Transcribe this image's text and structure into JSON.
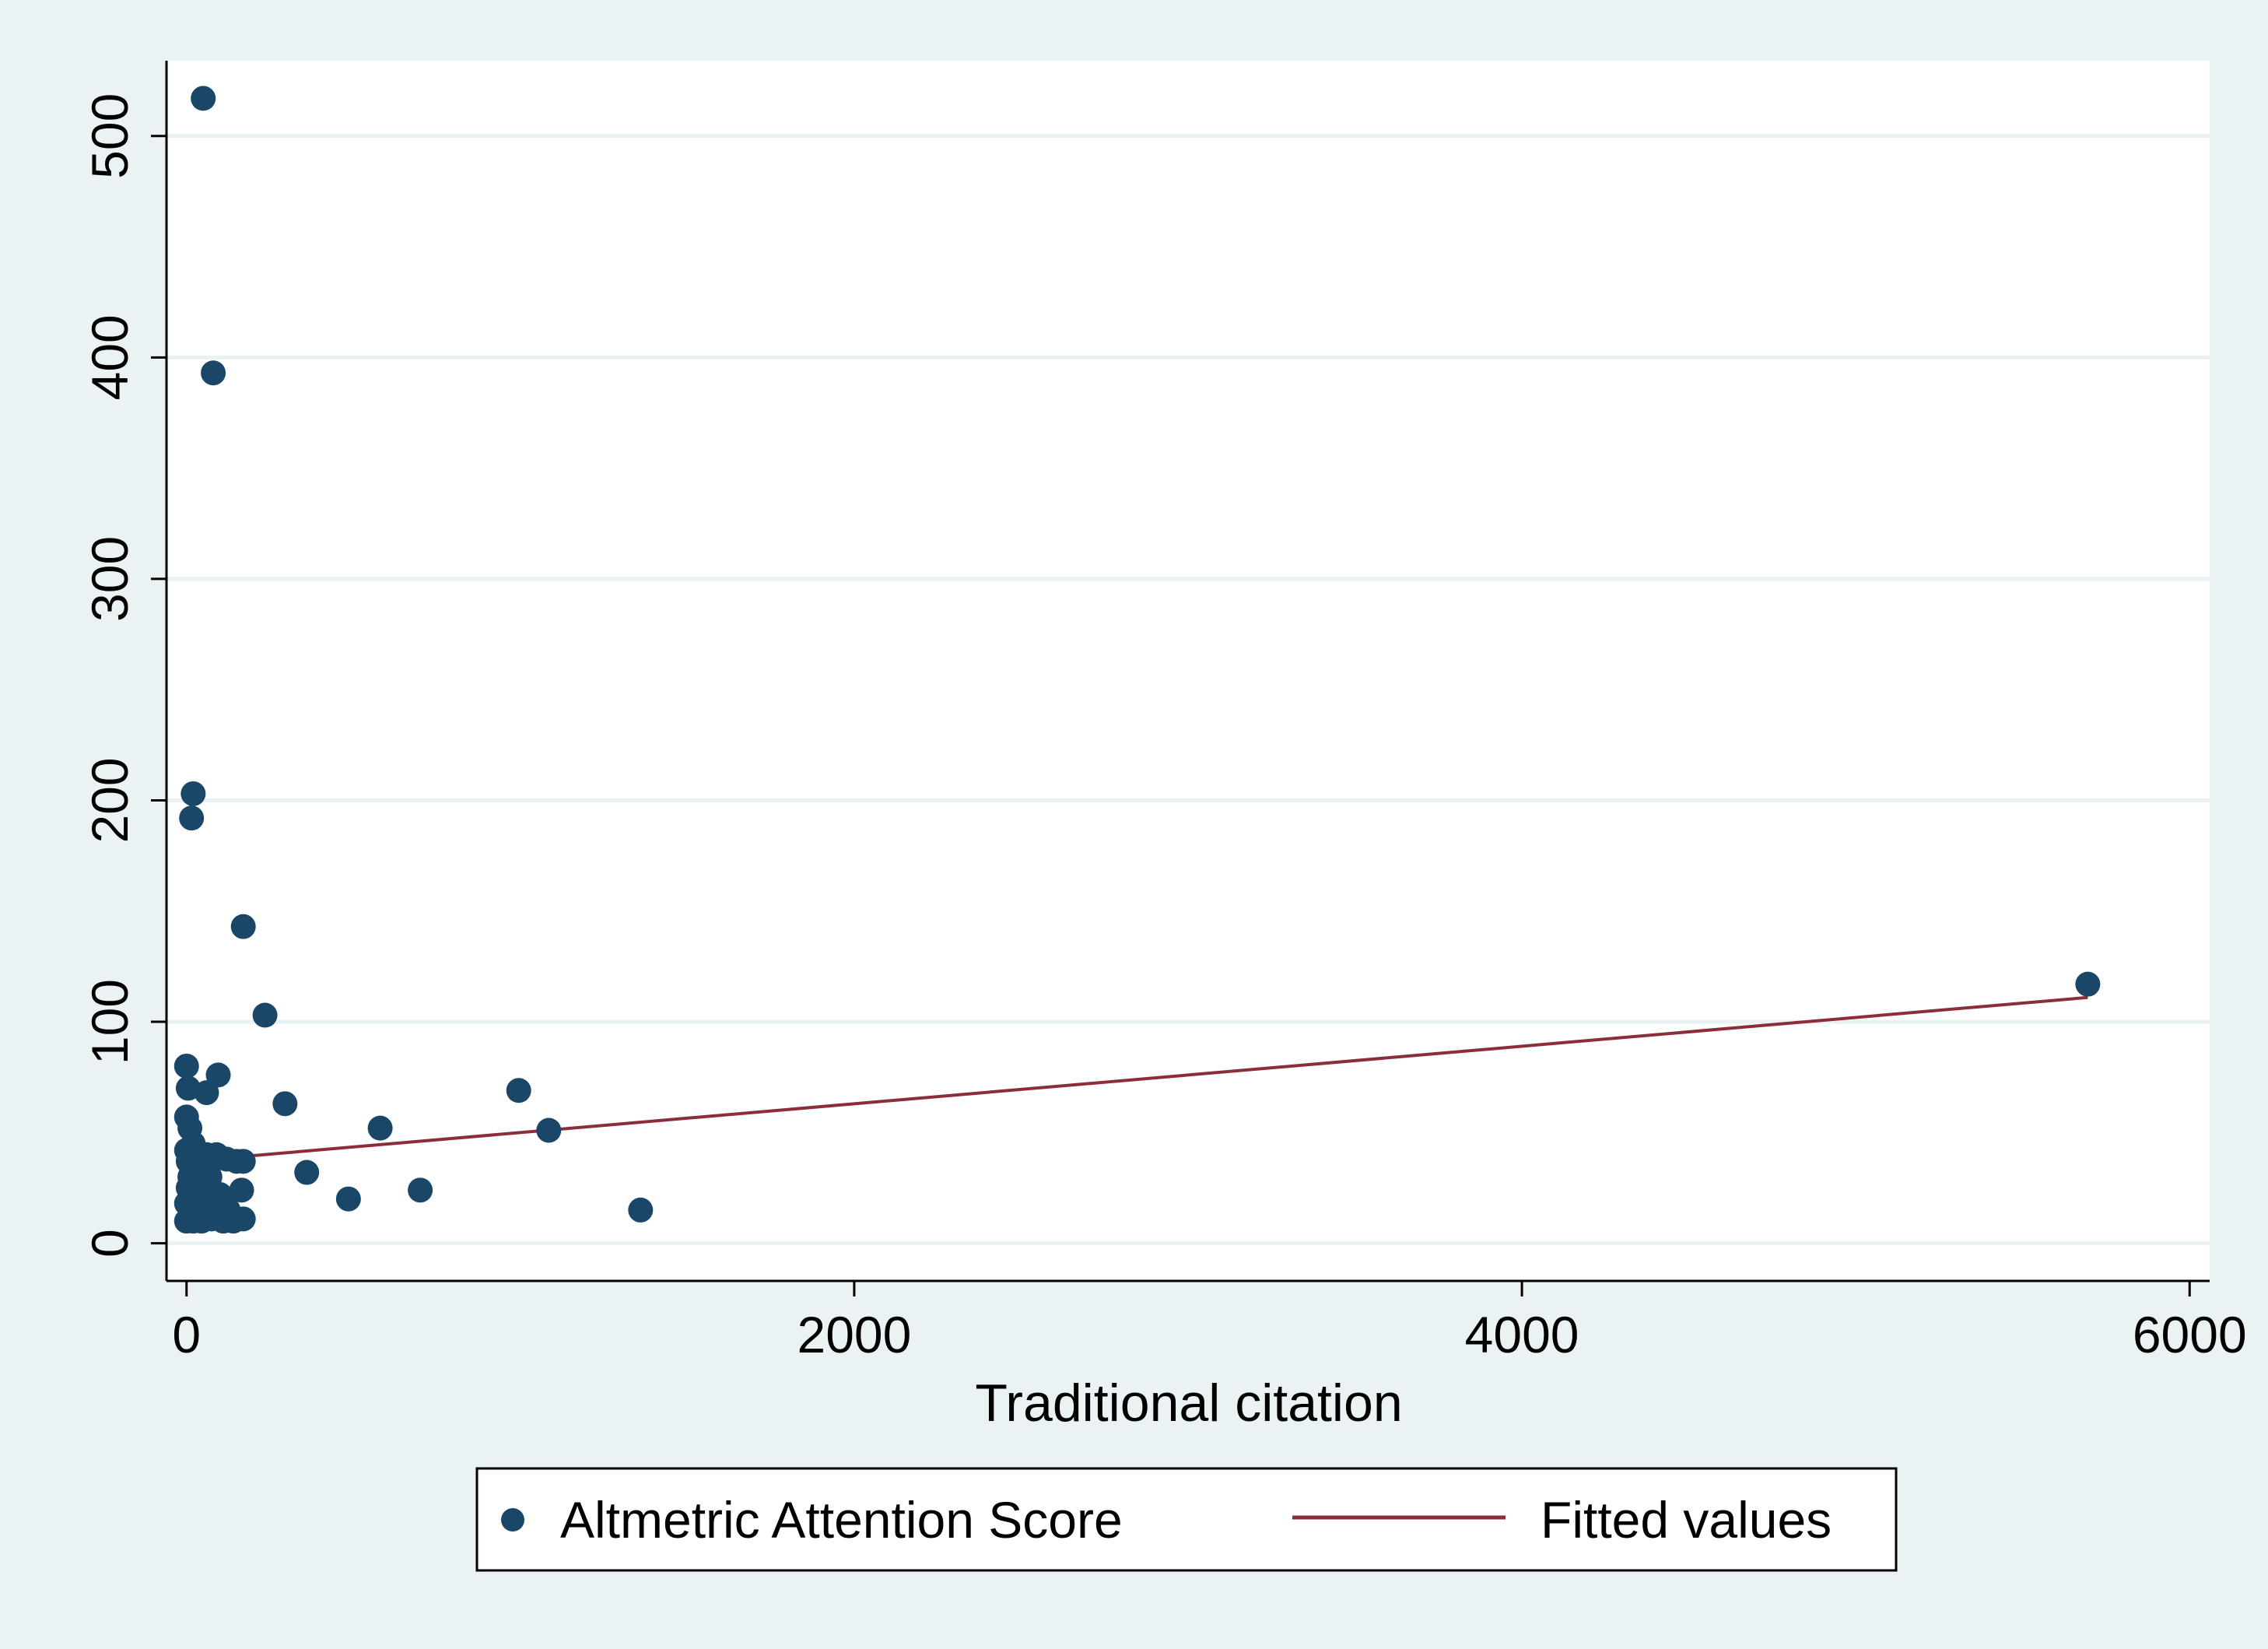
{
  "chart_data": {
    "type": "scatter",
    "title": "",
    "xlabel": "Traditional citation",
    "ylabel": "",
    "xlim": [
      -60,
      6060
    ],
    "ylim": [
      -17,
      534
    ],
    "x_ticks": [
      0,
      2000,
      4000,
      6000
    ],
    "y_ticks": [
      0,
      100,
      200,
      300,
      400,
      500
    ],
    "x_tick_labels": [
      "0",
      "2000",
      "4000",
      "6000"
    ],
    "y_tick_labels": [
      "0",
      "100",
      "200",
      "300",
      "400",
      "500"
    ],
    "grid": {
      "horizontal": true,
      "vertical": false
    },
    "legend": {
      "position": "bottom",
      "entries": [
        "Altmetric Attention Score",
        "Fitted values"
      ]
    },
    "colors": {
      "points": "#1a4768",
      "fit_line": "#8b2e3a",
      "plot_background": "#ffffff",
      "outer_background": "#eaf2f3",
      "grid": "#eaf2f3"
    },
    "series": [
      {
        "name": "Altmetric Attention Score",
        "type": "scatter",
        "points": [
          [
            50,
            517
          ],
          [
            80,
            393
          ],
          [
            20,
            203
          ],
          [
            15,
            192
          ],
          [
            170,
            143
          ],
          [
            235,
            103
          ],
          [
            5695,
            117
          ],
          [
            0,
            80
          ],
          [
            95,
            76
          ],
          [
            5,
            70
          ],
          [
            60,
            68
          ],
          [
            295,
            63
          ],
          [
            995,
            69
          ],
          [
            580,
            52
          ],
          [
            1085,
            51
          ],
          [
            0,
            57
          ],
          [
            10,
            52
          ],
          [
            20,
            45
          ],
          [
            0,
            42
          ],
          [
            5,
            37
          ],
          [
            25,
            40
          ],
          [
            45,
            38
          ],
          [
            60,
            40
          ],
          [
            90,
            40
          ],
          [
            120,
            38
          ],
          [
            150,
            37
          ],
          [
            170,
            37
          ],
          [
            360,
            32
          ],
          [
            10,
            30
          ],
          [
            40,
            30
          ],
          [
            70,
            30
          ],
          [
            5,
            25
          ],
          [
            35,
            22
          ],
          [
            65,
            22
          ],
          [
            100,
            22
          ],
          [
            165,
            24
          ],
          [
            700,
            24
          ],
          [
            485,
            20
          ],
          [
            1360,
            15
          ],
          [
            0,
            18
          ],
          [
            30,
            15
          ],
          [
            60,
            14
          ],
          [
            95,
            16
          ],
          [
            125,
            15
          ],
          [
            0,
            10
          ],
          [
            20,
            10
          ],
          [
            45,
            10
          ],
          [
            75,
            11
          ],
          [
            110,
            10
          ],
          [
            140,
            10
          ],
          [
            170,
            11
          ]
        ]
      },
      {
        "name": "Fitted values",
        "type": "line",
        "points": [
          [
            0,
            37
          ],
          [
            5695,
            111
          ]
        ]
      }
    ]
  }
}
